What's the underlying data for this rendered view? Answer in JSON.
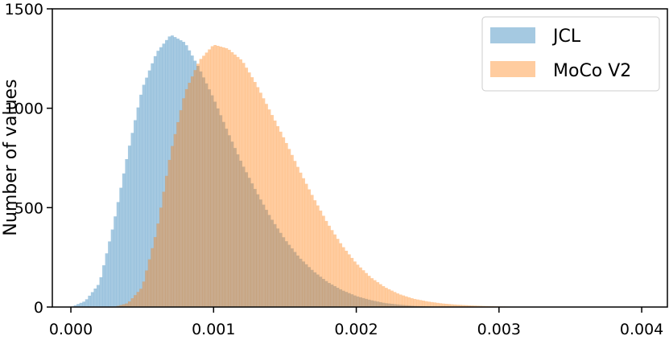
{
  "chart_data": {
    "type": "bar",
    "subtype": "histogram",
    "title": "",
    "xlabel": "",
    "ylabel": "Number of values",
    "xlim": [
      -0.00013,
      0.00418
    ],
    "ylim": [
      0,
      1500
    ],
    "xticks": [
      "0.000",
      "0.001",
      "0.002",
      "0.003",
      "0.004"
    ],
    "yticks": [
      "0",
      "500",
      "1000",
      "1500"
    ],
    "grid": false,
    "legend_position": "top-right",
    "bin_width": 2e-05,
    "series": [
      {
        "name": "JCL",
        "color": "#1f77b4",
        "opacity": 0.4,
        "points": [
          [
            0.0,
            0
          ],
          [
            0.0001,
            30
          ],
          [
            0.0002,
            120
          ],
          [
            0.0003,
            420
          ],
          [
            0.0004,
            780
          ],
          [
            0.0005,
            1100
          ],
          [
            0.0006,
            1280
          ],
          [
            0.0007,
            1370
          ],
          [
            0.0008,
            1330
          ],
          [
            0.0009,
            1200
          ],
          [
            0.001,
            1050
          ],
          [
            0.0011,
            880
          ],
          [
            0.0012,
            720
          ],
          [
            0.0013,
            580
          ],
          [
            0.0014,
            450
          ],
          [
            0.0015,
            340
          ],
          [
            0.0016,
            250
          ],
          [
            0.0017,
            180
          ],
          [
            0.0018,
            125
          ],
          [
            0.0019,
            85
          ],
          [
            0.002,
            55
          ],
          [
            0.0021,
            35
          ],
          [
            0.0022,
            20
          ],
          [
            0.0023,
            12
          ],
          [
            0.0024,
            6
          ],
          [
            0.0025,
            3
          ],
          [
            0.0026,
            1
          ],
          [
            0.0027,
            0
          ]
        ]
      },
      {
        "name": "MoCo V2",
        "color": "#ff7f0e",
        "opacity": 0.4,
        "points": [
          [
            0.0003,
            0
          ],
          [
            0.0004,
            20
          ],
          [
            0.0005,
            100
          ],
          [
            0.0006,
            380
          ],
          [
            0.0007,
            780
          ],
          [
            0.0008,
            1080
          ],
          [
            0.0009,
            1240
          ],
          [
            0.001,
            1320
          ],
          [
            0.0011,
            1300
          ],
          [
            0.0012,
            1240
          ],
          [
            0.0013,
            1120
          ],
          [
            0.0014,
            980
          ],
          [
            0.0015,
            840
          ],
          [
            0.0016,
            690
          ],
          [
            0.0017,
            550
          ],
          [
            0.0018,
            420
          ],
          [
            0.0019,
            310
          ],
          [
            0.002,
            220
          ],
          [
            0.0021,
            150
          ],
          [
            0.0022,
            100
          ],
          [
            0.0023,
            65
          ],
          [
            0.0024,
            42
          ],
          [
            0.0025,
            28
          ],
          [
            0.0026,
            18
          ],
          [
            0.0027,
            12
          ],
          [
            0.0028,
            8
          ],
          [
            0.0029,
            5
          ],
          [
            0.003,
            3
          ],
          [
            0.0031,
            2
          ],
          [
            0.0032,
            1
          ],
          [
            0.0033,
            0
          ]
        ]
      }
    ]
  }
}
